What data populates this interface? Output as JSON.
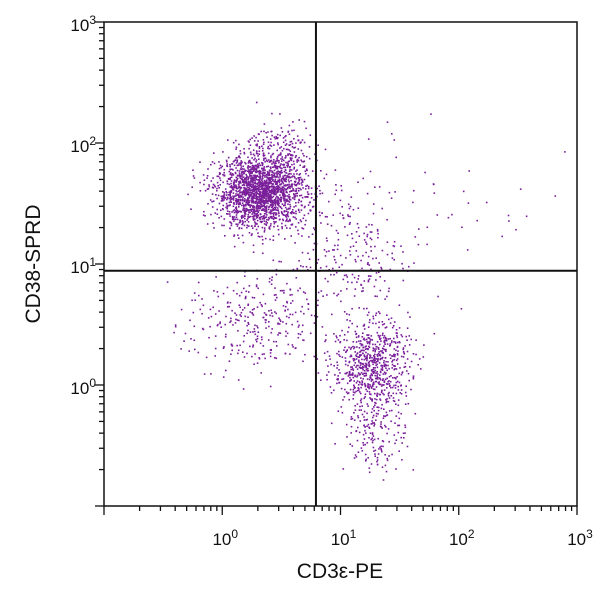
{
  "chart_data": {
    "type": "scatter",
    "title": "",
    "xlabel": "CD3ε-PE",
    "ylabel": "CD38-SPRD",
    "xscale": "log",
    "yscale": "log",
    "xlim": [
      0.1,
      1000
    ],
    "ylim": [
      0.1,
      1000
    ],
    "x_ticks": [
      {
        "value": 1,
        "base": "10",
        "exp": "0"
      },
      {
        "value": 10,
        "base": "10",
        "exp": "1"
      },
      {
        "value": 100,
        "base": "10",
        "exp": "2"
      },
      {
        "value": 1000,
        "base": "10",
        "exp": "3"
      }
    ],
    "y_ticks": [
      {
        "value": 1,
        "base": "10",
        "exp": "0"
      },
      {
        "value": 10,
        "base": "10",
        "exp": "1"
      },
      {
        "value": 100,
        "base": "10",
        "exp": "2"
      },
      {
        "value": 1000,
        "base": "10",
        "exp": "3"
      }
    ],
    "gates": {
      "x": 6.2,
      "y": 8.8
    },
    "point_color": "#7a1f9a",
    "grid": false,
    "populations": [
      {
        "center": [
          2.1,
          40
        ],
        "spread": [
          0.19,
          0.15
        ],
        "count": 2000
      },
      {
        "center": [
          3.2,
          90
        ],
        "spread": [
          0.14,
          0.13
        ],
        "count": 150
      },
      {
        "center": [
          18,
          1.5
        ],
        "spread": [
          0.16,
          0.18
        ],
        "count": 700
      },
      {
        "center": [
          20,
          0.45
        ],
        "spread": [
          0.13,
          0.2
        ],
        "count": 180
      },
      {
        "center": [
          1.8,
          3.2
        ],
        "spread": [
          0.28,
          0.22
        ],
        "count": 300
      },
      {
        "center": [
          12,
          12
        ],
        "spread": [
          0.25,
          0.3
        ],
        "count": 220
      },
      {
        "center": [
          50,
          30
        ],
        "spread": [
          0.5,
          0.45
        ],
        "count": 60
      }
    ]
  }
}
